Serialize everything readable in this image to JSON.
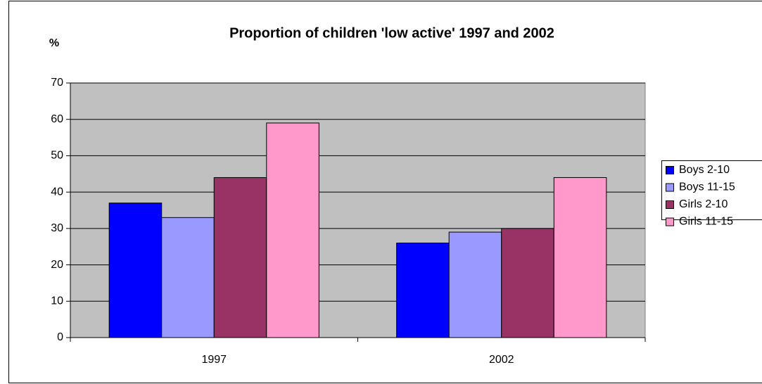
{
  "chart_data": {
    "type": "bar",
    "title": "Proportion of children 'low active' 1997 and 2002",
    "y_label": "%",
    "categories": [
      "1997",
      "2002"
    ],
    "series": [
      {
        "name": "Boys 2-10",
        "color": "#0000ff",
        "values": [
          37,
          26
        ]
      },
      {
        "name": "Boys 11-15",
        "color": "#9999ff",
        "values": [
          33,
          29
        ]
      },
      {
        "name": "Girls 2-10",
        "color": "#993366",
        "values": [
          44,
          30
        ]
      },
      {
        "name": "Girls 11-15",
        "color": "#ff99cc",
        "values": [
          59,
          44
        ]
      }
    ],
    "ylim": [
      0,
      70
    ],
    "yticks": [
      0,
      10,
      20,
      30,
      40,
      50,
      60,
      70
    ],
    "grid": true,
    "legend": "right"
  }
}
